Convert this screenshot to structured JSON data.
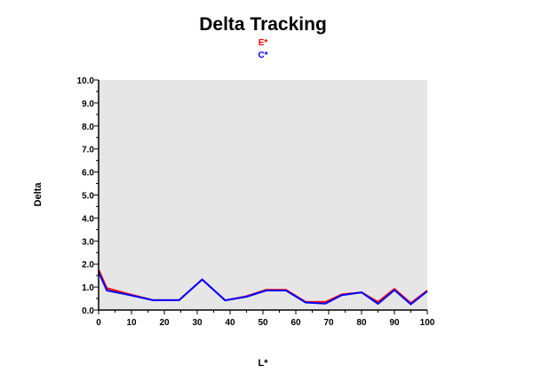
{
  "chart_data": {
    "type": "line",
    "title": "Delta Tracking",
    "xlabel": "L*",
    "ylabel": "Delta",
    "xlim": [
      0,
      100
    ],
    "ylim": [
      0,
      10
    ],
    "x_ticks": [
      "0",
      "10",
      "20",
      "30",
      "40",
      "50",
      "60",
      "70",
      "80",
      "90",
      "100"
    ],
    "y_ticks": [
      "0.0",
      "1.0",
      "2.0",
      "3.0",
      "4.0",
      "5.0",
      "6.0",
      "7.0",
      "8.0",
      "9.0",
      "10.0"
    ],
    "grid": false,
    "legend_position": "top-center",
    "plot_background": "#e6e6e6",
    "x": [
      0,
      2.5,
      8.5,
      16.5,
      24.5,
      31.5,
      38.5,
      45,
      51,
      57,
      63,
      69,
      74,
      80,
      85,
      90,
      95,
      100
    ],
    "series": [
      {
        "name": "E*",
        "color": "#ff0000",
        "values": [
          1.75,
          0.95,
          0.72,
          0.43,
          0.43,
          1.33,
          0.42,
          0.6,
          0.88,
          0.88,
          0.35,
          0.35,
          0.68,
          0.77,
          0.35,
          0.92,
          0.3,
          0.85
        ]
      },
      {
        "name": "C*",
        "color": "#0000ff",
        "values": [
          1.65,
          0.85,
          0.68,
          0.43,
          0.43,
          1.33,
          0.42,
          0.58,
          0.85,
          0.85,
          0.33,
          0.28,
          0.65,
          0.77,
          0.27,
          0.87,
          0.25,
          0.82
        ]
      }
    ]
  }
}
